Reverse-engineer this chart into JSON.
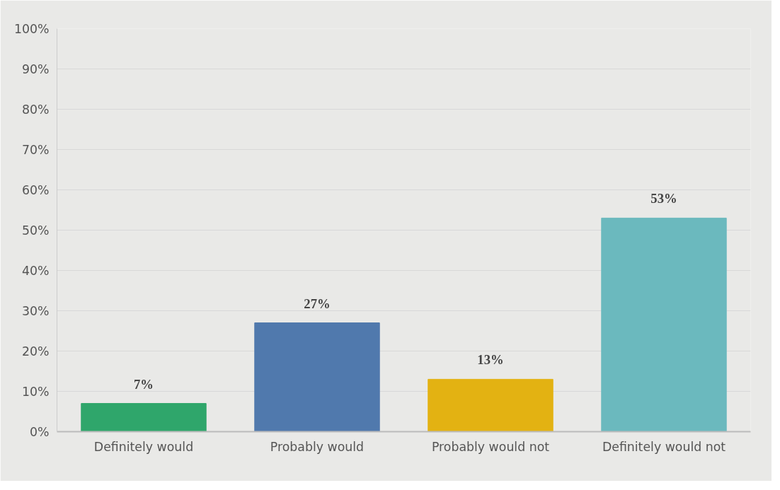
{
  "chart_data": {
    "type": "bar",
    "categories": [
      "Definitely would",
      "Probably would",
      "Probably would not",
      "Definitely would not"
    ],
    "values": [
      7,
      27,
      13,
      53
    ],
    "colors": [
      "#2fa66b",
      "#5079ad",
      "#e3b212",
      "#6bb9be"
    ],
    "value_labels": [
      "7%",
      "27%",
      "13%",
      "53%"
    ],
    "ylim": [
      0,
      100
    ],
    "yticks": [
      {
        "value": 0,
        "label": "0%"
      },
      {
        "value": 10,
        "label": "10%"
      },
      {
        "value": 20,
        "label": "20%"
      },
      {
        "value": 30,
        "label": "30%"
      },
      {
        "value": 40,
        "label": "40%"
      },
      {
        "value": 50,
        "label": "50%"
      },
      {
        "value": 60,
        "label": "60%"
      },
      {
        "value": 70,
        "label": "70%"
      },
      {
        "value": 80,
        "label": "80%"
      },
      {
        "value": 90,
        "label": "90%"
      },
      {
        "value": 100,
        "label": "100%"
      }
    ],
    "grid": "y"
  }
}
